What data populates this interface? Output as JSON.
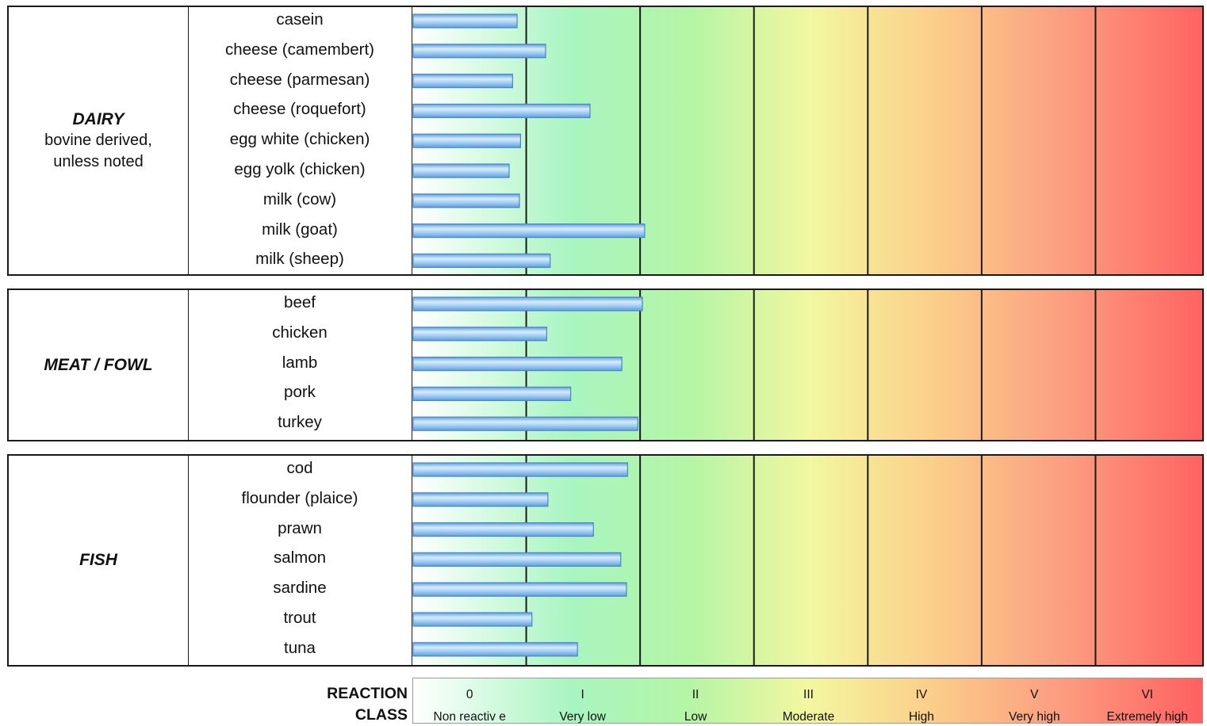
{
  "colors": {
    "zone_stops": [
      "#ffffff",
      "#a8f5c0",
      "#b5f5a5",
      "#f3f7a0",
      "#fbd08a",
      "#fc9d80",
      "#ff6060"
    ],
    "bar_fill": "#8ec4f0",
    "bar_stroke": "#4a86c8",
    "gridline": "#1a1a1a"
  },
  "chart_data": {
    "type": "bar",
    "orientation": "horizontal",
    "xlim": [
      0,
      7
    ],
    "grid_lines_at": [
      1,
      2,
      3,
      4,
      5,
      6
    ],
    "background_bands": [
      "0",
      "I",
      "II",
      "III",
      "IV",
      "V",
      "VI"
    ],
    "groups": [
      {
        "title": "DAIRY",
        "subtitle": [
          "bovine derived,",
          "unless noted"
        ],
        "categories": [
          "casein",
          "cheese (camembert)",
          "cheese (parmesan)",
          "cheese (roquefort)",
          "egg white (chicken)",
          "egg yolk (chicken)",
          "milk (cow)",
          "milk (goat)",
          "milk (sheep)"
        ],
        "values": [
          0.92,
          1.17,
          0.88,
          1.56,
          0.95,
          0.85,
          0.94,
          2.04,
          1.21
        ]
      },
      {
        "title": "MEAT / FOWL",
        "subtitle": [],
        "categories": [
          "beef",
          "chicken",
          "lamb",
          "pork",
          "turkey"
        ],
        "values": [
          2.02,
          1.18,
          1.84,
          1.39,
          1.98
        ]
      },
      {
        "title": "FISH",
        "subtitle": [],
        "categories": [
          "cod",
          "flounder (plaice)",
          "prawn",
          "salmon",
          "sardine",
          "trout",
          "tuna"
        ],
        "values": [
          1.89,
          1.19,
          1.59,
          1.83,
          1.88,
          1.05,
          1.45
        ]
      }
    ],
    "legend": {
      "title": [
        "REACTION",
        "CLASS"
      ],
      "classes": [
        {
          "roman": "0",
          "name": "Non reactiv e"
        },
        {
          "roman": "I",
          "name": "Very low"
        },
        {
          "roman": "II",
          "name": "Low"
        },
        {
          "roman": "III",
          "name": "Moderate"
        },
        {
          "roman": "IV",
          "name": "High"
        },
        {
          "roman": "V",
          "name": "Very high"
        },
        {
          "roman": "VI",
          "name": "Extremely high"
        }
      ]
    }
  }
}
